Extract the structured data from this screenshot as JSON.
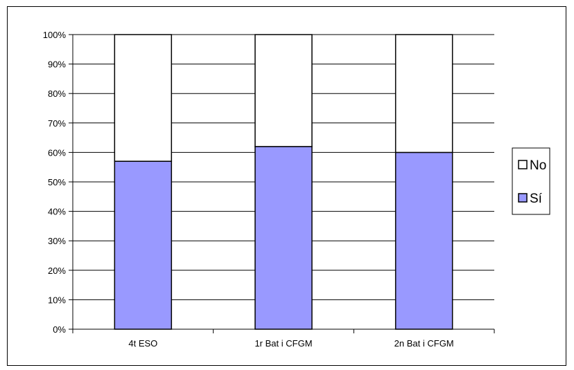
{
  "chart_data": {
    "type": "bar",
    "stacked": true,
    "percent_stacked": true,
    "categories": [
      "4t ESO",
      "1r Bat i CFGM",
      "2n Bat i CFGM"
    ],
    "series": [
      {
        "name": "Sí",
        "values": [
          57,
          62,
          60
        ],
        "color": "#9999ff"
      },
      {
        "name": "No",
        "values": [
          43,
          38,
          40
        ],
        "color": "#ffffff"
      }
    ],
    "ylim": [
      0,
      100
    ],
    "yticks": [
      "0%",
      "10%",
      "20%",
      "30%",
      "40%",
      "50%",
      "60%",
      "70%",
      "80%",
      "90%",
      "100%"
    ],
    "grid": true,
    "legend_position": "right",
    "legend_order": [
      "No",
      "Sí"
    ]
  }
}
